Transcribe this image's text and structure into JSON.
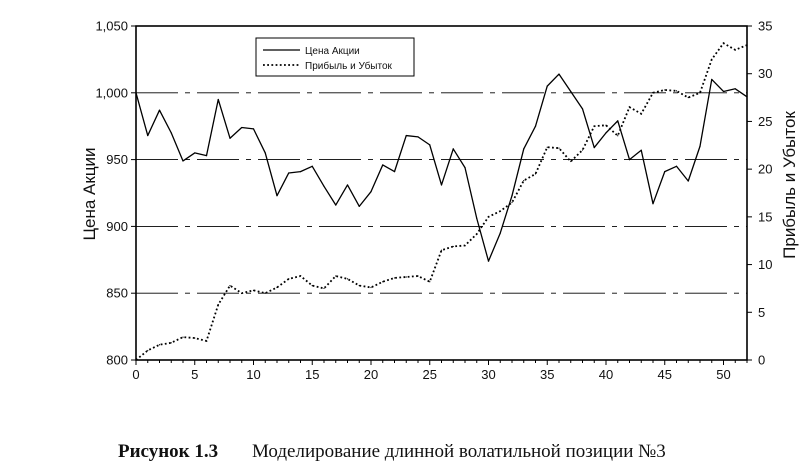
{
  "chart_data": {
    "type": "line",
    "x": [
      0,
      1,
      2,
      3,
      4,
      5,
      6,
      7,
      8,
      9,
      10,
      11,
      12,
      13,
      14,
      15,
      16,
      17,
      18,
      19,
      20,
      21,
      22,
      23,
      24,
      25,
      26,
      27,
      28,
      29,
      30,
      31,
      32,
      33,
      34,
      35,
      36,
      37,
      38,
      39,
      40,
      41,
      42,
      43,
      44,
      45,
      46,
      47,
      48,
      49,
      50,
      51,
      52
    ],
    "xlim": [
      0,
      52
    ],
    "xticks": [
      "0",
      "5",
      "10",
      "15",
      "20",
      "25",
      "30",
      "35",
      "40",
      "45",
      "50"
    ],
    "ylabel": "Цена Акции",
    "ylim": [
      800,
      1050
    ],
    "yticks": [
      "800",
      "850",
      "900",
      "950",
      "1,000",
      "1,050"
    ],
    "y2label": "Прибыль и Убыток",
    "y2lim": [
      0,
      35
    ],
    "y2ticks": [
      "0",
      "5",
      "10",
      "15",
      "20",
      "25",
      "30",
      "35"
    ],
    "series": [
      {
        "name": "Цена Акции",
        "axis": "left",
        "style": "solid",
        "values": [
          1000,
          968,
          987,
          970,
          949,
          955,
          953,
          995,
          966,
          974,
          973,
          955,
          923,
          940,
          941,
          945,
          930,
          916,
          931,
          915,
          926,
          946,
          941,
          968,
          967,
          961,
          931,
          958,
          944,
          906,
          874,
          895,
          923,
          958,
          975,
          1005,
          1014,
          1001,
          988,
          959,
          970,
          979,
          950,
          957,
          917,
          941,
          945,
          934,
          960,
          1010,
          1001,
          1003,
          997
        ]
      },
      {
        "name": "Прибыль и Убыток",
        "axis": "right",
        "style": "dotted",
        "values": [
          0,
          1,
          1.6,
          1.8,
          2.4,
          2.3,
          2,
          5.8,
          7.8,
          7,
          7.3,
          7,
          7.6,
          8.5,
          8.8,
          7.8,
          7.5,
          8.8,
          8.5,
          7.8,
          7.6,
          8.2,
          8.6,
          8.7,
          8.8,
          8.2,
          11.5,
          11.9,
          12,
          13.2,
          15,
          15.6,
          16.5,
          18.8,
          19.5,
          22.3,
          22.2,
          20.8,
          22,
          24.5,
          24.6,
          23.5,
          26.5,
          25.8,
          28,
          28.3,
          28.2,
          27.5,
          28,
          31.5,
          33.2,
          32.5,
          33
        ]
      }
    ],
    "legend": "top-left",
    "grid": "horizontal dashed"
  },
  "caption": {
    "label": "Рисунок 1.3",
    "text": "Моделирование длинной волатильной позиции №3"
  }
}
